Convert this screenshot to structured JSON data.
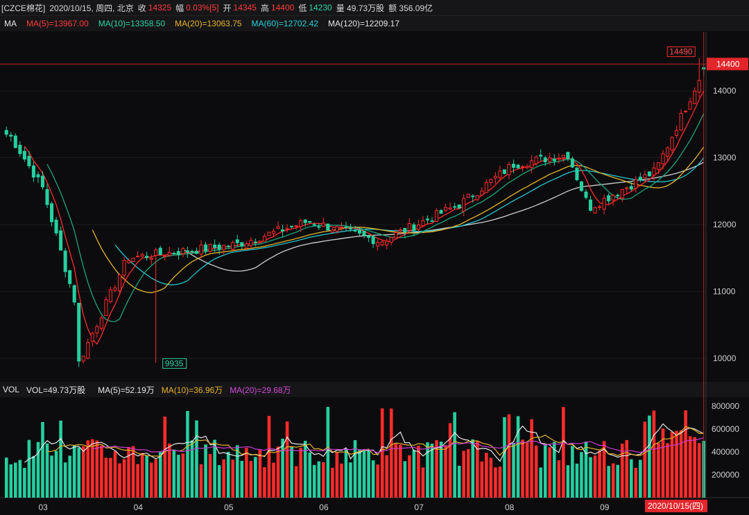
{
  "header": {
    "symbol": "[CZCE棉花]",
    "date": "2020/10/15, 周四, 北京",
    "close_label": "收",
    "close": "14325",
    "change_label": "幅",
    "change": "0.03%[5]",
    "open_label": "开",
    "open": "14345",
    "high_label": "高",
    "high": "14400",
    "low_label": "低",
    "low": "14230",
    "volume": "量 49.73万股",
    "amount": "额 356.09亿"
  },
  "ma_legend": {
    "label": "MA",
    "ma5": "MA(5)=13967.00",
    "ma10": "MA(10)=13358.50",
    "ma20": "MA(20)=13063.75",
    "ma60": "MA(60)=12702.42",
    "ma120": "MA(120)=12209.17"
  },
  "vol_legend": {
    "label": "VOL",
    "vol": "VOL=49.73万股",
    "ma5": "MA(5)=52.19万",
    "ma10": "MA(10)=36.96万",
    "ma20": "MA(20)=29.68万"
  },
  "colors": {
    "up": "#ff2b2b",
    "down": "#25d0a0",
    "ma5": "#e8e8e8",
    "ma10": "#1fa57c",
    "ma20": "#e8b42c",
    "ma60": "#27c6cf",
    "ma120": "#d0d0d0",
    "vol_ma20": "#c93ad4"
  },
  "annotations": {
    "price_tag": "14400",
    "max_label": "14490",
    "min_label": "9935",
    "cursor_date": "2020/10/15(四)"
  },
  "chart_data": [
    {
      "type": "candlestick",
      "title": "",
      "y_ticks": [
        10000,
        11000,
        12000,
        13000,
        14000
      ],
      "ylim": [
        9680,
        14880
      ],
      "x_ticks": [
        "03",
        "04",
        "05",
        "06",
        "07",
        "08",
        "09"
      ],
      "months": [
        "03",
        "04",
        "05",
        "06",
        "07",
        "08",
        "09",
        "10"
      ],
      "close_path_note": "",
      "key_points": [
        {
          "date": "03-02",
          "value": 13350
        },
        {
          "date": "03-13",
          "value": 12550
        },
        {
          "date": "03-24",
          "value": 10800
        },
        {
          "date": "03-25",
          "value": 9935
        },
        {
          "date": "04-10",
          "value": 11500
        },
        {
          "date": "05-15",
          "value": 11700
        },
        {
          "date": "06-08",
          "value": 12050
        },
        {
          "date": "07-01",
          "value": 11750
        },
        {
          "date": "07-27",
          "value": 12300
        },
        {
          "date": "08-14",
          "value": 12900
        },
        {
          "date": "09-01",
          "value": 13050
        },
        {
          "date": "09-08",
          "value": 12250
        },
        {
          "date": "09-30",
          "value": 12800
        },
        {
          "date": "10-15",
          "value": 14325
        }
      ],
      "ma_levels_last": {
        "MA5": 13967.0,
        "MA10": 13358.5,
        "MA20": 13063.75,
        "MA60": 12702.42,
        "MA120": 12209.17
      }
    },
    {
      "type": "bar",
      "title": "",
      "y_ticks": [
        200000,
        400000,
        600000,
        800000
      ],
      "ylim": [
        0,
        850000
      ],
      "last_volume": 497300,
      "ma5_last": 521900,
      "ma10_last": 369600,
      "ma20_last": 296800
    }
  ]
}
